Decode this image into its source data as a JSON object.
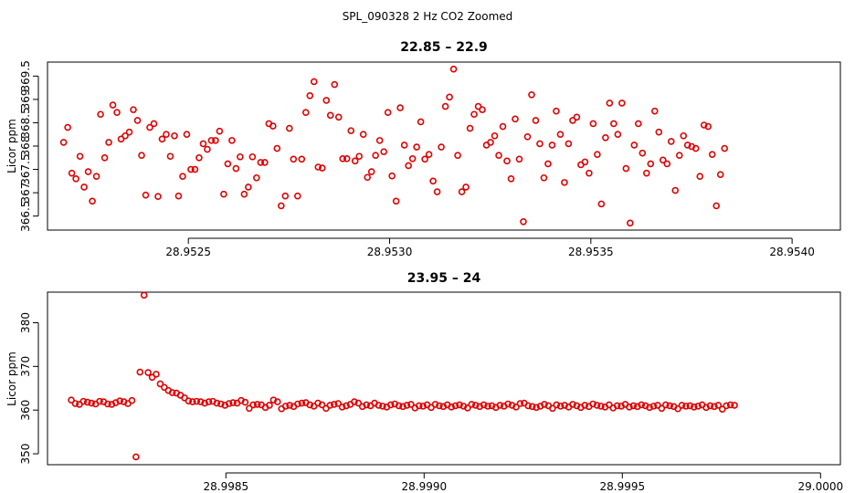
{
  "suptitle": "SPL_090328  2 Hz CO2 Zoomed",
  "chart_data": [
    {
      "type": "scatter",
      "title": "22.85 – 22.9",
      "xlabel": "",
      "ylabel": "Licor ppm",
      "xlim": [
        28.95215,
        28.95412
      ],
      "ylim": [
        366.2,
        369.8
      ],
      "xticks": [
        28.9525,
        28.953,
        28.9535,
        28.954
      ],
      "xtick_labels": [
        "28.9525",
        "28.9530",
        "28.9535",
        "28.9540"
      ],
      "yticks": [
        366.5,
        367,
        367.5,
        368,
        368.5,
        369,
        369.5
      ],
      "ytick_labels": [
        "366.5",
        "367",
        "367.5",
        "368",
        "368.5",
        "369",
        "369.5"
      ],
      "marker_color": "#e00000",
      "x_start": 28.95219,
      "x_step": 1.02e-05,
      "y": [
        368.08,
        368.4,
        367.42,
        367.3,
        367.78,
        367.12,
        367.45,
        366.82,
        367.35,
        368.68,
        367.75,
        368.08,
        368.88,
        368.72,
        368.15,
        368.22,
        368.3,
        368.78,
        368.55,
        367.8,
        366.95,
        368.4,
        368.48,
        366.92,
        368.15,
        368.25,
        367.78,
        368.22,
        366.93,
        367.35,
        368.25,
        367.5,
        367.5,
        367.75,
        368.05,
        367.93,
        368.12,
        368.12,
        368.32,
        366.97,
        367.62,
        368.12,
        367.52,
        367.77,
        366.97,
        367.12,
        367.77,
        367.32,
        367.65,
        367.65,
        368.48,
        368.43,
        367.95,
        366.72,
        366.93,
        368.38,
        367.72,
        366.93,
        367.72,
        368.72,
        369.08,
        369.38,
        367.55,
        367.53,
        368.98,
        368.66,
        369.32,
        368.62,
        367.73,
        367.73,
        368.33,
        367.68,
        367.78,
        368.25,
        367.33,
        367.45,
        367.8,
        368.12,
        367.88,
        368.72,
        367.36,
        366.82,
        368.82,
        368.02,
        367.58,
        367.73,
        367.98,
        368.52,
        367.72,
        367.82,
        367.25,
        367.02,
        367.98,
        368.85,
        369.05,
        369.65,
        367.8,
        367.02,
        367.12,
        368.38,
        368.68,
        368.85,
        368.78,
        368.02,
        368.08,
        368.22,
        367.8,
        368.42,
        367.68,
        367.3,
        368.58,
        367.72,
        366.38,
        368.2,
        369.1,
        368.55,
        368.05,
        367.32,
        367.62,
        368.02,
        368.75,
        368.25,
        367.22,
        368.05,
        368.55,
        368.62,
        367.6,
        367.66,
        367.42,
        368.48,
        367.82,
        366.76,
        368.18,
        368.92,
        368.48,
        368.25,
        368.92,
        367.52,
        366.35,
        368.02,
        368.48,
        367.85,
        367.42,
        367.62,
        368.75,
        368.3,
        367.7,
        367.62,
        368.1,
        367.05,
        367.8,
        368.22,
        368.02,
        367.99,
        367.95,
        367.35,
        368.45,
        368.42,
        367.82,
        366.72,
        367.39,
        367.95
      ]
    },
    {
      "type": "scatter",
      "title": "23.95 – 24",
      "xlabel": "",
      "ylabel": "Licor ppm",
      "xlim": [
        28.99805,
        29.00005
      ],
      "ylim": [
        347.5,
        387
      ],
      "xticks": [
        28.9985,
        28.999,
        28.9995,
        29.0
      ],
      "xtick_labels": [
        "28.9985",
        "28.9990",
        "28.9995",
        "29.0000"
      ],
      "yticks": [
        350,
        360,
        370,
        380
      ],
      "ytick_labels": [
        "350",
        "360",
        "370",
        "380"
      ],
      "marker_color": "#e00000",
      "x_start": 28.99811,
      "x_step": 1.02e-05,
      "y_special": {
        "16": 349.3,
        "17": 368.7,
        "18": 386.3,
        "19": 368.6,
        "20": 367.5,
        "21": 368.2
      },
      "y": [
        362.3,
        361.5,
        361.3,
        362.0,
        361.8,
        361.6,
        361.4,
        362.0,
        361.9,
        361.4,
        361.3,
        361.7,
        362.1,
        361.9,
        361.5,
        362.2,
        349.3,
        368.7,
        386.3,
        368.6,
        367.5,
        368.2,
        366.0,
        365.2,
        364.5,
        364.0,
        363.9,
        363.4,
        362.8,
        362.1,
        361.9,
        362.0,
        361.9,
        361.6,
        361.9,
        362.0,
        361.6,
        361.4,
        361.1,
        361.5,
        361.7,
        361.6,
        362.2,
        361.8,
        360.4,
        361.2,
        361.3,
        361.2,
        360.6,
        361.1,
        362.3,
        361.9,
        360.3,
        360.9,
        361.1,
        360.8,
        361.4,
        361.6,
        361.7,
        361.2,
        360.9,
        361.6,
        361.2,
        360.4,
        361.1,
        361.3,
        361.5,
        360.7,
        361.0,
        361.3,
        361.9,
        361.6,
        360.8,
        361.2,
        361.0,
        361.6,
        361.1,
        360.9,
        360.7,
        361.2,
        361.4,
        361.0,
        360.8,
        361.1,
        361.3,
        360.5,
        361.0,
        360.9,
        361.2,
        360.6,
        361.3,
        361.0,
        360.8,
        361.2,
        360.7,
        361.0,
        361.2,
        360.9,
        360.5,
        361.3,
        361.1,
        360.8,
        361.2,
        360.9,
        361.0,
        360.6,
        361.1,
        360.9,
        361.4,
        361.1,
        360.7,
        361.5,
        361.6,
        361.0,
        360.8,
        360.6,
        360.9,
        361.3,
        361.0,
        360.4,
        361.2,
        360.9,
        361.1,
        360.7,
        361.3,
        361.0,
        360.6,
        361.1,
        360.8,
        361.4,
        361.1,
        360.9,
        360.7,
        361.2,
        360.5,
        361.0,
        360.9,
        361.3,
        360.7,
        361.0,
        360.8,
        361.2,
        361.0,
        360.6,
        360.9,
        361.1,
        360.4,
        361.2,
        361.0,
        360.8,
        360.3,
        361.1,
        360.9,
        361.0,
        360.7,
        360.9,
        361.2,
        360.6,
        361.0,
        360.8,
        361.1,
        360.2,
        361.0,
        361.2,
        361.1
      ]
    }
  ]
}
